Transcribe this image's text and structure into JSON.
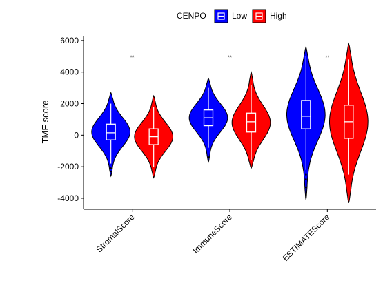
{
  "chart_data": {
    "type": "violin",
    "title": "",
    "xlabel": "",
    "ylabel": "TME score",
    "ylim": [
      -4700,
      6300
    ],
    "yticks": [
      -4000,
      -2000,
      0,
      2000,
      4000,
      6000
    ],
    "ytick_labels": [
      "-4000",
      "-2000",
      "0",
      "2000",
      "4000",
      "6000"
    ],
    "categories": [
      "StromalScore",
      "ImmuneScore",
      "ESTIMATEScore"
    ],
    "significance": [
      "**",
      "**",
      "**"
    ],
    "legend": {
      "title": "CENPO",
      "position": "top",
      "entries": [
        "Low",
        "High"
      ]
    },
    "colors": {
      "Low": "#0000ff",
      "High": "#ff0000",
      "outline": "#000000",
      "box": "#ffffff"
    },
    "series": [
      {
        "name": "Low",
        "groups": [
          {
            "min": -2600,
            "q1": -300,
            "median": 150,
            "q3": 700,
            "max": 2700,
            "whisker_low": -1800,
            "whisker_high": 2000,
            "outliers": [
              -2100,
              -2300
            ]
          },
          {
            "min": -1700,
            "q1": 600,
            "median": 1100,
            "q3": 1600,
            "max": 3600,
            "whisker_low": -800,
            "whisker_high": 3000,
            "outliers": [
              -1400
            ]
          },
          {
            "min": -4100,
            "q1": 400,
            "median": 1200,
            "q3": 2200,
            "max": 5600,
            "whisker_low": -2200,
            "whisker_high": 5000,
            "outliers": [
              -2500,
              -2800,
              -3300
            ]
          }
        ]
      },
      {
        "name": "High",
        "groups": [
          {
            "min": -2700,
            "q1": -600,
            "median": -100,
            "q3": 400,
            "max": 2500,
            "whisker_low": -2000,
            "whisker_high": 1800,
            "outliers": []
          },
          {
            "min": -2100,
            "q1": 200,
            "median": 850,
            "q3": 1400,
            "max": 4000,
            "whisker_low": -1600,
            "whisker_high": 3200,
            "outliers": []
          },
          {
            "min": -4300,
            "q1": -200,
            "median": 850,
            "q3": 1900,
            "max": 5800,
            "whisker_low": -2500,
            "whisker_high": 4800,
            "outliers": []
          }
        ]
      }
    ]
  }
}
